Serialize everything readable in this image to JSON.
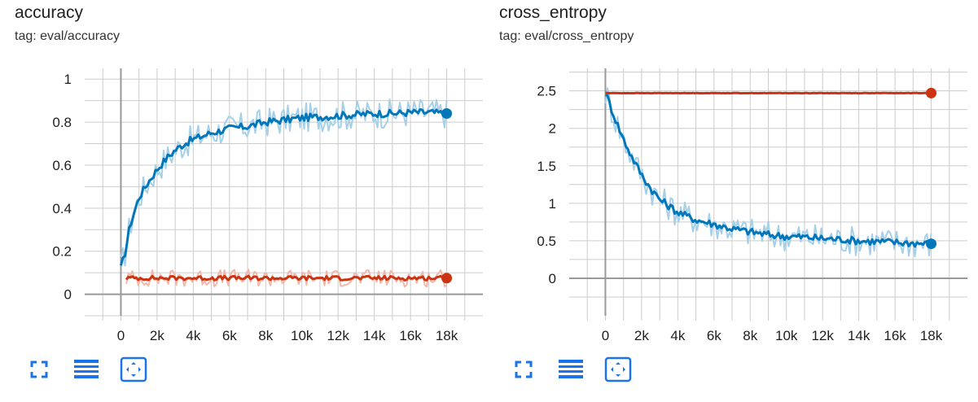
{
  "colors": {
    "blue": "#0077bb",
    "blue_light": "#a6cfe8",
    "red": "#cc3311",
    "red_light": "#f2b8aa",
    "grid": "#cccccc",
    "axis": "#999999",
    "icon": "#1a73e8"
  },
  "toolbar": {
    "icons": [
      "fullscreen-icon",
      "legend-toggle-icon",
      "fit-domain-icon"
    ]
  },
  "chart_data": [
    {
      "type": "line",
      "title": "accuracy",
      "subtitle": "tag: eval/accuracy",
      "xlim": [
        -2000,
        20000
      ],
      "ylim": [
        -0.1,
        1.05
      ],
      "x_ticks": [
        0,
        2000,
        4000,
        6000,
        8000,
        10000,
        12000,
        14000,
        16000,
        18000
      ],
      "x_tick_labels": [
        "0",
        "2k",
        "4k",
        "6k",
        "8k",
        "10k",
        "12k",
        "14k",
        "16k",
        "18k"
      ],
      "y_ticks": [
        0,
        0.2,
        0.4,
        0.6,
        0.8,
        1
      ],
      "y_tick_labels": [
        "0",
        "0.2",
        "0.4",
        "0.6",
        "0.8",
        "1"
      ],
      "grid": true,
      "series": [
        {
          "color": "#0077bb",
          "x": [
            0,
            250,
            500,
            1000,
            1500,
            2000,
            2500,
            3000,
            3500,
            4000,
            5000,
            6000,
            7000,
            8000,
            9000,
            10000,
            11000,
            12000,
            13000,
            14000,
            15000,
            16000,
            17000,
            18000
          ],
          "y": [
            0.12,
            0.2,
            0.32,
            0.45,
            0.52,
            0.58,
            0.63,
            0.67,
            0.7,
            0.72,
            0.75,
            0.77,
            0.78,
            0.8,
            0.81,
            0.82,
            0.825,
            0.83,
            0.835,
            0.84,
            0.84,
            0.845,
            0.845,
            0.84
          ]
        },
        {
          "color": "#cc3311",
          "x": [
            300,
            18000
          ],
          "y": [
            0.075,
            0.075
          ]
        }
      ]
    },
    {
      "type": "line",
      "title": "cross_entropy",
      "subtitle": "tag: eval/cross_entropy",
      "xlim": [
        -2000,
        20000
      ],
      "ylim": [
        -0.5,
        2.8
      ],
      "x_ticks": [
        0,
        2000,
        4000,
        6000,
        8000,
        10000,
        12000,
        14000,
        16000,
        18000
      ],
      "x_tick_labels": [
        "0",
        "2k",
        "4k",
        "6k",
        "8k",
        "10k",
        "12k",
        "14k",
        "16k",
        "18k"
      ],
      "y_ticks": [
        0,
        0.5,
        1,
        1.5,
        2,
        2.5
      ],
      "y_tick_labels": [
        "0",
        "0.5",
        "1",
        "1.5",
        "2",
        "2.5"
      ],
      "grid": true,
      "series": [
        {
          "color": "#0077bb",
          "x": [
            0,
            500,
            1000,
            1500,
            2000,
            2500,
            3000,
            4000,
            5000,
            6000,
            7000,
            8000,
            9000,
            10000,
            11000,
            12000,
            13000,
            14000,
            15000,
            16000,
            17000,
            18000
          ],
          "y": [
            2.48,
            2.15,
            1.85,
            1.6,
            1.38,
            1.2,
            1.05,
            0.88,
            0.78,
            0.72,
            0.66,
            0.62,
            0.58,
            0.56,
            0.55,
            0.53,
            0.52,
            0.5,
            0.49,
            0.48,
            0.47,
            0.46
          ]
        },
        {
          "color": "#cc3311",
          "x": [
            0,
            18000
          ],
          "y": [
            2.47,
            2.47
          ]
        }
      ]
    }
  ]
}
